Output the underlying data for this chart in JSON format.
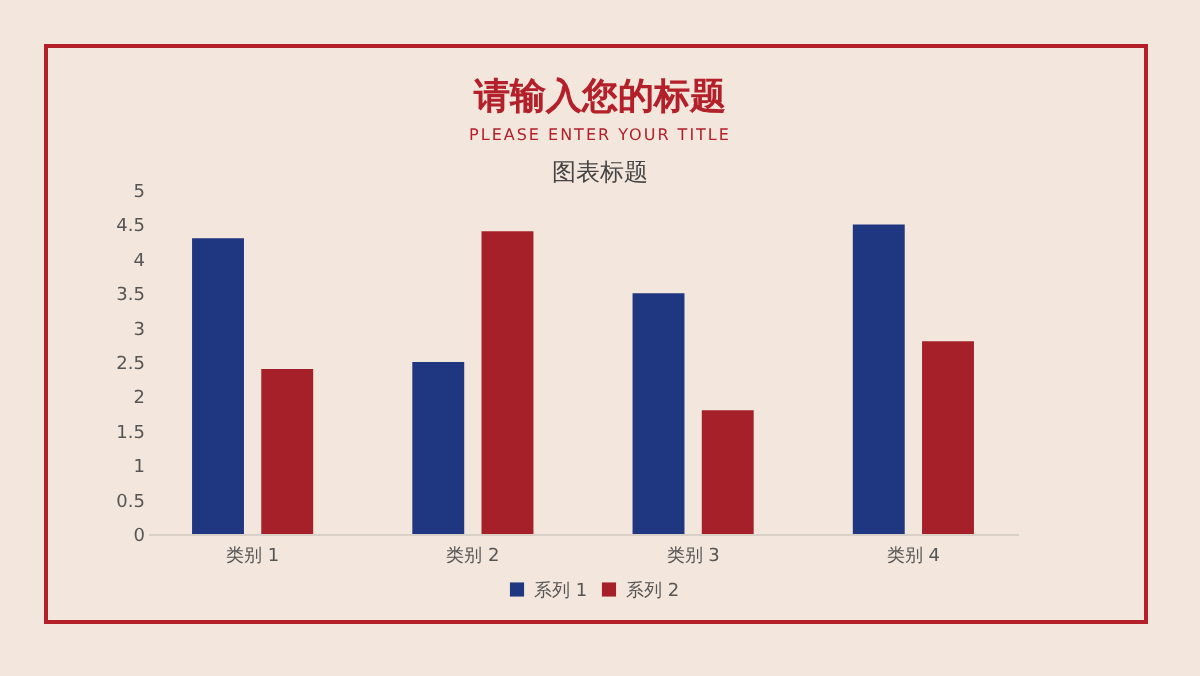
{
  "chart_data": {
    "type": "bar",
    "title": "请输入您的标题",
    "subtitle": "PLEASE ENTER YOUR TITLE",
    "annotations": [
      "图表标题"
    ],
    "categories": [
      "类别 1",
      "类别 2",
      "类别 3",
      "类别 4"
    ],
    "series": [
      {
        "name": "系列 1",
        "color": "#1f3780",
        "values": [
          4.3,
          2.5,
          3.5,
          4.5
        ]
      },
      {
        "name": "系列 2",
        "color": "#a52028",
        "values": [
          2.4,
          4.4,
          1.8,
          2.8
        ]
      }
    ],
    "ylim": [
      0,
      5
    ],
    "yticks": [
      0,
      0.5,
      1,
      1.5,
      2,
      2.5,
      3,
      3.5,
      4,
      4.5,
      5
    ],
    "grid": false,
    "legend": "bottom"
  }
}
